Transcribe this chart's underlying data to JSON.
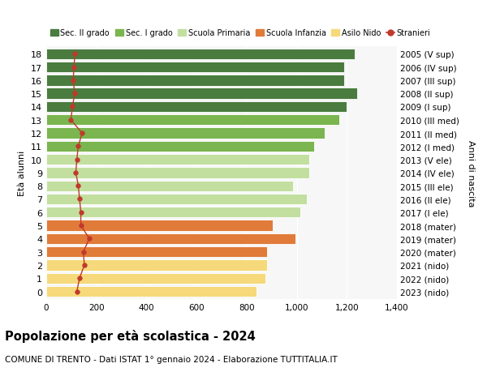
{
  "ages": [
    18,
    17,
    16,
    15,
    14,
    13,
    12,
    11,
    10,
    9,
    8,
    7,
    6,
    5,
    4,
    3,
    2,
    1,
    0
  ],
  "years": [
    "2005 (V sup)",
    "2006 (IV sup)",
    "2007 (III sup)",
    "2008 (II sup)",
    "2009 (I sup)",
    "2010 (III med)",
    "2011 (II med)",
    "2012 (I med)",
    "2013 (V ele)",
    "2014 (IV ele)",
    "2015 (III ele)",
    "2016 (II ele)",
    "2017 (I ele)",
    "2018 (mater)",
    "2019 (mater)",
    "2020 (mater)",
    "2021 (nido)",
    "2022 (nido)",
    "2023 (nido)"
  ],
  "bar_values": [
    1230,
    1190,
    1190,
    1240,
    1200,
    1170,
    1110,
    1070,
    1050,
    1050,
    985,
    1040,
    1015,
    905,
    995,
    880,
    880,
    875,
    840
  ],
  "bar_colors": [
    "#4a7c3f",
    "#4a7c3f",
    "#4a7c3f",
    "#4a7c3f",
    "#4a7c3f",
    "#7ab550",
    "#7ab550",
    "#7ab550",
    "#c2dfa0",
    "#c2dfa0",
    "#c2dfa0",
    "#c2dfa0",
    "#c2dfa0",
    "#e07b39",
    "#e07b39",
    "#e07b39",
    "#f5d97a",
    "#f5d97a",
    "#f5d97a"
  ],
  "stranieri_values": [
    115,
    110,
    108,
    113,
    105,
    98,
    143,
    128,
    122,
    118,
    128,
    133,
    138,
    138,
    172,
    148,
    152,
    133,
    122
  ],
  "legend_labels": [
    "Sec. II grado",
    "Sec. I grado",
    "Scuola Primaria",
    "Scuola Infanzia",
    "Asilo Nido",
    "Stranieri"
  ],
  "legend_colors": [
    "#4a7c3f",
    "#7ab550",
    "#c2dfa0",
    "#e07b39",
    "#f5d97a",
    "#c0392b"
  ],
  "title": "Popolazione per età scolastica - 2024",
  "subtitle": "COMUNE DI TRENTO - Dati ISTAT 1° gennaio 2024 - Elaborazione TUTTITALIA.IT",
  "ylabel_left": "Età alunni",
  "ylabel_right": "Anni di nascita",
  "xlim": [
    0,
    1400
  ],
  "xticks": [
    0,
    200,
    400,
    600,
    800,
    1000,
    1200,
    1400
  ],
  "xtick_labels": [
    "0",
    "200",
    "400",
    "600",
    "800",
    "1,000",
    "1,200",
    "1,400"
  ],
  "background_color": "#ffffff",
  "plot_bg_color": "#f7f7f7",
  "stranieri_color": "#c0392b",
  "bar_height": 0.82,
  "grid_color": "#ffffff",
  "dashed_color": "#cccccc"
}
